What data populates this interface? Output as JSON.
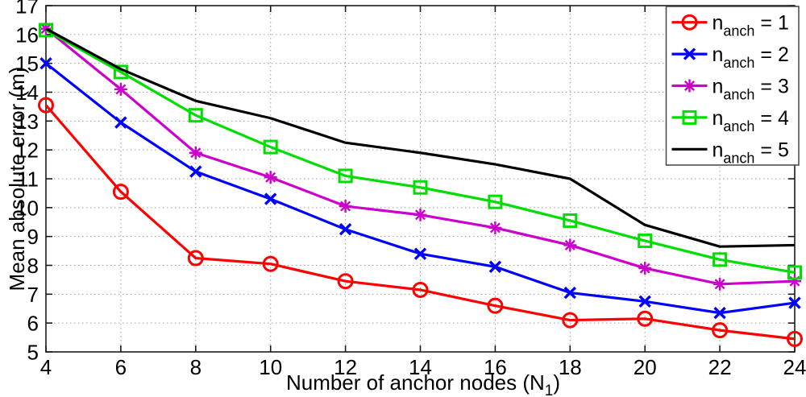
{
  "figure": {
    "background": "#ffffff",
    "axis_color": "#1a1a1a",
    "grid_color": "#9e9e9e",
    "legend_border_color": "#444444"
  },
  "chart_data": {
    "type": "line",
    "title": "",
    "xlabel": {
      "text": "Number of anchor nodes (N",
      "sub": "1",
      "suffix": ")"
    },
    "ylabel": {
      "text": "Mean absolute error (m)"
    },
    "xlim": [
      4,
      24
    ],
    "ylim": [
      5,
      17
    ],
    "xticks": [
      4,
      6,
      8,
      10,
      12,
      14,
      16,
      18,
      20,
      22,
      24
    ],
    "yticks": [
      5,
      6,
      7,
      8,
      9,
      10,
      11,
      12,
      13,
      14,
      15,
      16,
      17
    ],
    "grid": true,
    "legend_position": "top-right",
    "x": [
      4,
      6,
      8,
      10,
      12,
      14,
      16,
      18,
      20,
      22,
      24
    ],
    "series": [
      {
        "name": "n_anch = 1",
        "legend": {
          "base": "n",
          "sub": "anch",
          "rest": " = 1"
        },
        "color": "#ff0000",
        "marker": "circle",
        "values": [
          13.55,
          10.55,
          8.25,
          8.05,
          7.45,
          7.15,
          6.6,
          6.1,
          6.15,
          5.75,
          5.45
        ]
      },
      {
        "name": "n_anch = 2",
        "legend": {
          "base": "n",
          "sub": "anch",
          "rest": " = 2"
        },
        "color": "#0000ff",
        "marker": "x",
        "values": [
          15.0,
          12.95,
          11.25,
          10.3,
          9.25,
          8.4,
          7.95,
          7.05,
          6.75,
          6.35,
          6.7
        ]
      },
      {
        "name": "n_anch = 3",
        "legend": {
          "base": "n",
          "sub": "anch",
          "rest": " = 3"
        },
        "color": "#cc00cc",
        "marker": "asterisk",
        "values": [
          16.2,
          14.1,
          11.9,
          11.05,
          10.05,
          9.75,
          9.3,
          8.7,
          7.9,
          7.35,
          7.45
        ]
      },
      {
        "name": "n_anch = 4",
        "legend": {
          "base": "n",
          "sub": "anch",
          "rest": " = 4"
        },
        "color": "#00dd00",
        "marker": "square",
        "values": [
          16.15,
          14.7,
          13.2,
          12.1,
          11.1,
          10.7,
          10.2,
          9.55,
          8.85,
          8.2,
          7.75
        ]
      },
      {
        "name": "n_anch = 5",
        "legend": {
          "base": "n",
          "sub": "anch",
          "rest": " = 5"
        },
        "color": "#000000",
        "marker": "none",
        "values": [
          16.2,
          14.8,
          13.7,
          13.1,
          12.25,
          11.9,
          11.5,
          11.0,
          9.4,
          8.65,
          8.7
        ]
      }
    ]
  }
}
